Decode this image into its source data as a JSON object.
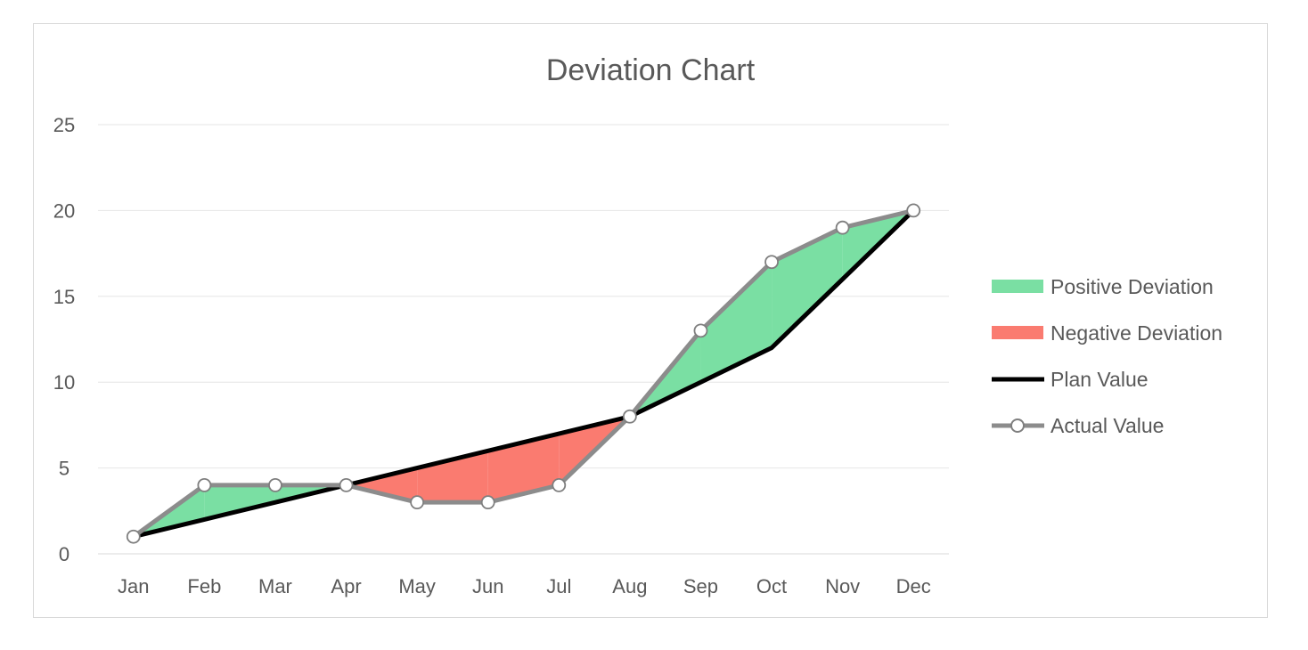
{
  "chart_data": {
    "type": "line",
    "title": "Deviation Chart",
    "xlabel": "",
    "ylabel": "",
    "categories": [
      "Jan",
      "Feb",
      "Mar",
      "Apr",
      "May",
      "Jun",
      "Jul",
      "Aug",
      "Sep",
      "Oct",
      "Nov",
      "Dec"
    ],
    "ylim": [
      0,
      25
    ],
    "yticks": [
      "0",
      "5",
      "10",
      "15",
      "20",
      "25"
    ],
    "grid": true,
    "legend_position": "right",
    "series": [
      {
        "name": "Plan Value",
        "values": [
          1,
          2,
          3,
          4,
          5,
          6,
          7,
          8,
          10,
          12,
          16,
          20
        ],
        "color": "#000000"
      },
      {
        "name": "Actual Value",
        "values": [
          1,
          4,
          4,
          4,
          3,
          3,
          4,
          8,
          13,
          17,
          19,
          20
        ],
        "color": "#8c8c8c"
      }
    ],
    "areas": [
      {
        "name": "Positive Deviation",
        "color": "#7ADFA3"
      },
      {
        "name": "Negative Deviation",
        "color": "#FA7B70"
      }
    ]
  }
}
